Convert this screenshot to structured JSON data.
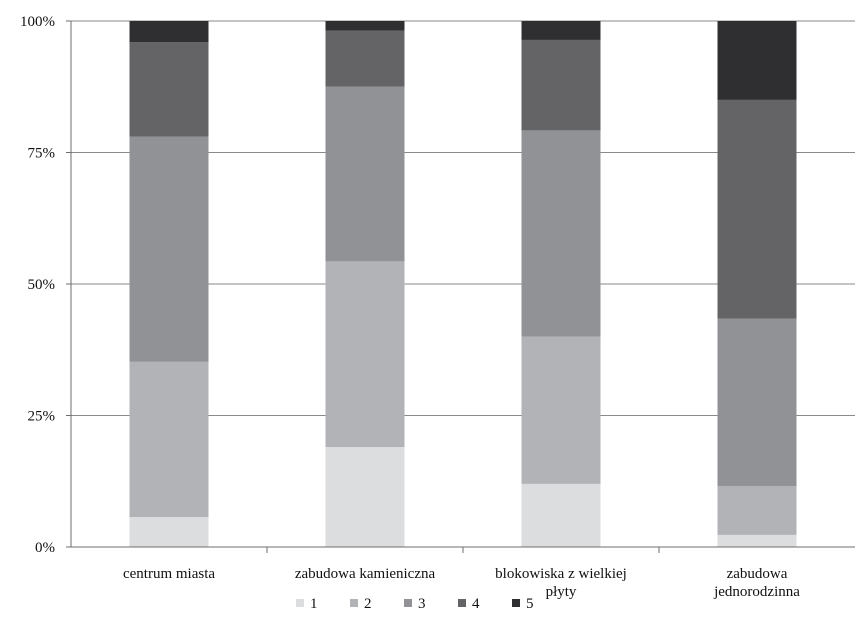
{
  "chart_data": {
    "type": "bar",
    "stacked": true,
    "percent": true,
    "title": "",
    "xlabel": "",
    "ylabel": "",
    "ylim": [
      0,
      100
    ],
    "yticks": [
      0,
      25,
      50,
      75,
      100
    ],
    "ytick_labels": [
      "0%",
      "25%",
      "50%",
      "75%",
      "100%"
    ],
    "grid": true,
    "legend_position": "bottom",
    "categories": [
      [
        "centrum miasta"
      ],
      [
        "zabudowa kamieniczna"
      ],
      [
        "blokowiska z wielkiej",
        "płyty"
      ],
      [
        "zabudowa",
        "jednorodzinna"
      ]
    ],
    "series": [
      {
        "name": "1",
        "color": "#dcdddf",
        "values": [
          5.7,
          19.0,
          12.0,
          2.3
        ]
      },
      {
        "name": "2",
        "color": "#b2b3b6",
        "values": [
          29.5,
          35.3,
          28.0,
          9.3
        ]
      },
      {
        "name": "3",
        "color": "#919296",
        "values": [
          42.8,
          33.2,
          39.2,
          31.8
        ]
      },
      {
        "name": "4",
        "color": "#646466",
        "values": [
          18.0,
          10.7,
          17.2,
          41.6
        ]
      },
      {
        "name": "5",
        "color": "#2f2f31",
        "values": [
          4.0,
          1.8,
          3.6,
          15.0
        ]
      }
    ]
  }
}
